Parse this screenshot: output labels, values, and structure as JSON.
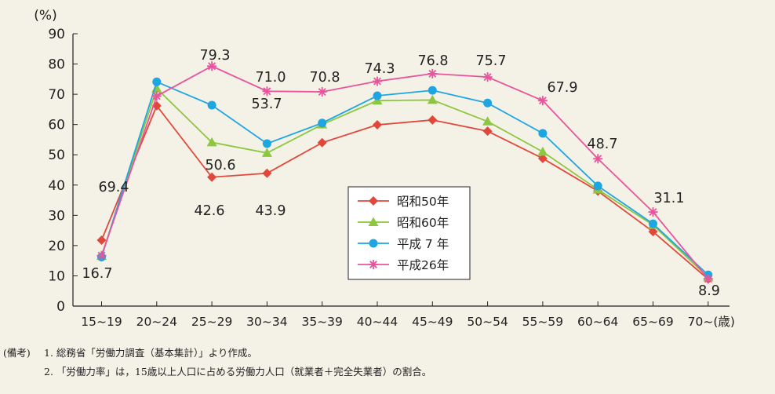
{
  "chart_data": {
    "type": "line",
    "ylabel": "(%)",
    "ylim": [
      0,
      90
    ],
    "yticks": [
      0,
      10,
      20,
      30,
      40,
      50,
      60,
      70,
      80,
      90
    ],
    "grid": false,
    "legend_position": "center-right",
    "categories": [
      "15~19",
      "20~24",
      "25~29",
      "30~34",
      "35~39",
      "40~44",
      "45~49",
      "50~54",
      "55~59",
      "60~64",
      "65~69",
      "70~(歳)"
    ],
    "series": [
      {
        "name": "昭和50年",
        "color": "#e2473b",
        "marker": "diamond",
        "values": [
          21.8,
          66.2,
          42.6,
          43.9,
          54.0,
          59.9,
          61.5,
          57.8,
          48.8,
          38.0,
          24.6,
          8.9
        ]
      },
      {
        "name": "昭和60年",
        "color": "#8dc63f",
        "marker": "triangle",
        "values": [
          16.6,
          71.9,
          54.1,
          50.6,
          60.0,
          67.9,
          68.1,
          61.0,
          51.0,
          38.5,
          26.8,
          9.5
        ]
      },
      {
        "name": "平成 7 年",
        "color": "#1ea6e3",
        "marker": "circle",
        "values": [
          16.2,
          74.1,
          66.4,
          53.7,
          60.5,
          69.5,
          71.3,
          67.1,
          57.1,
          39.7,
          27.2,
          10.3
        ]
      },
      {
        "name": "平成26年",
        "color": "#e8559c",
        "marker": "asterisk",
        "values": [
          16.7,
          69.4,
          79.3,
          71.0,
          70.8,
          74.3,
          76.8,
          75.7,
          67.9,
          48.7,
          31.1,
          9.0
        ]
      }
    ],
    "annotations": [
      {
        "text": "16.7",
        "category": "15~19"
      },
      {
        "text": "69.4",
        "category": "20~24"
      },
      {
        "text": "79.3",
        "category": "25~29"
      },
      {
        "text": "42.6",
        "category": "25~29"
      },
      {
        "text": "71.0",
        "category": "30~34"
      },
      {
        "text": "53.7",
        "category": "30~34"
      },
      {
        "text": "50.6",
        "category": "30~34"
      },
      {
        "text": "43.9",
        "category": "30~34"
      },
      {
        "text": "70.8",
        "category": "35~39"
      },
      {
        "text": "74.3",
        "category": "40~44"
      },
      {
        "text": "76.8",
        "category": "45~49"
      },
      {
        "text": "75.7",
        "category": "50~54"
      },
      {
        "text": "67.9",
        "category": "55~59"
      },
      {
        "text": "48.7",
        "category": "60~64"
      },
      {
        "text": "31.1",
        "category": "65~69"
      },
      {
        "text": "8.9",
        "category": "70~(歳)"
      }
    ]
  },
  "notes": {
    "line1_lead": "(備考)",
    "line1": "1. 総務省「労働力調査（基本集計）」より作成。",
    "line2": "2. 「労働力率」は，15歳以上人口に占める労働力人口（就業者＋完全失業者）の割合。"
  }
}
